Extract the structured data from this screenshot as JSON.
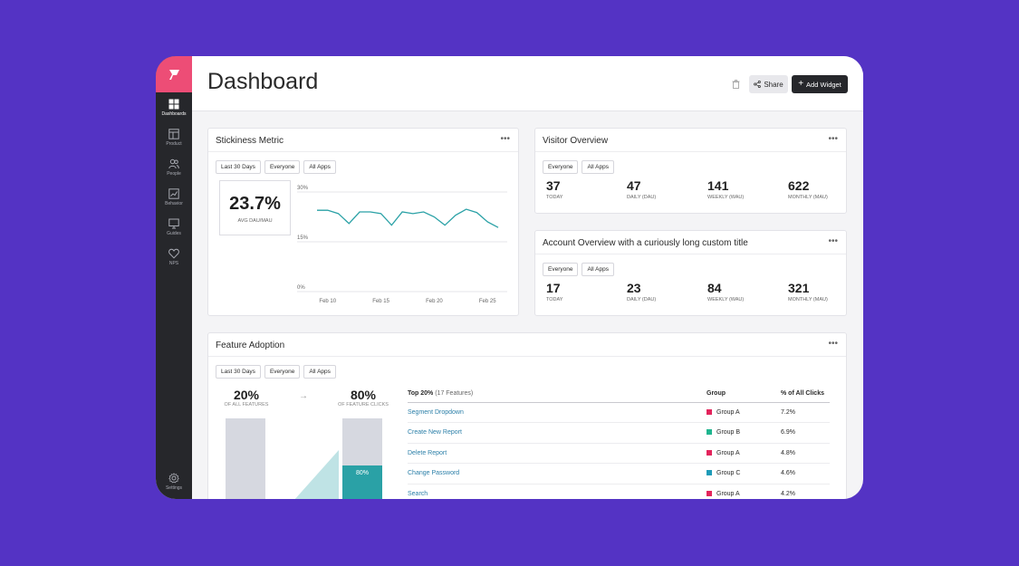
{
  "colors": {
    "background": "#5433c4",
    "accent": "#ed4d76",
    "sidebar": "#26272b",
    "teal": "#2aa1a6",
    "light_teal": "#bfe3e5",
    "group_a": "#e3245c",
    "group_b": "#1fb58f",
    "group_c": "#1e9bb8"
  },
  "sidebar": {
    "logo_icon": "flag-icon",
    "items": [
      {
        "label": "Dashboards",
        "icon": "grid-icon"
      },
      {
        "label": "Product",
        "icon": "layout-icon"
      },
      {
        "label": "People",
        "icon": "people-icon"
      },
      {
        "label": "Behavior",
        "icon": "chart-icon"
      },
      {
        "label": "Guides",
        "icon": "monitor-icon"
      },
      {
        "label": "NPS",
        "icon": "heart-icon"
      }
    ],
    "settings": {
      "label": "Settings",
      "icon": "gear-icon"
    }
  },
  "header": {
    "title": "Dashboard",
    "share_label": "Share",
    "add_widget_label": "Add Widget"
  },
  "stickiness": {
    "title": "Stickiness Metric",
    "filters": [
      "Last 30 Days",
      "Everyone",
      "All Apps"
    ],
    "value": "23.7%",
    "value_label": "AVG DAU/MAU"
  },
  "chart_data": {
    "type": "line",
    "x": [
      "Feb 9",
      "Feb 10",
      "Feb 11",
      "Feb 12",
      "Feb 13",
      "Feb 14",
      "Feb 15",
      "Feb 16",
      "Feb 17",
      "Feb 18",
      "Feb 19",
      "Feb 20",
      "Feb 21",
      "Feb 22",
      "Feb 23",
      "Feb 24",
      "Feb 25",
      "Feb 26"
    ],
    "xticks": [
      "Feb 10",
      "Feb 15",
      "Feb 20",
      "Feb 25"
    ],
    "yticks": [
      "30%",
      "15%",
      "0%"
    ],
    "values": [
      24.5,
      24.5,
      23.5,
      20.5,
      24.0,
      24.0,
      23.5,
      20.0,
      24.0,
      23.5,
      24.0,
      22.5,
      20.0,
      23.0,
      24.8,
      23.8,
      21.0,
      19.3
    ],
    "ylim": [
      0,
      30
    ],
    "grid": true
  },
  "visitor_overview": {
    "title": "Visitor Overview",
    "filters": [
      "Everyone",
      "All Apps"
    ],
    "stats": [
      {
        "value": "37",
        "label": "TODAY"
      },
      {
        "value": "47",
        "label": "DAILY (DAU)"
      },
      {
        "value": "141",
        "label": "WEEKLY (WAU)"
      },
      {
        "value": "622",
        "label": "MONTHLY (MAU)"
      }
    ]
  },
  "account_overview": {
    "title": "Account Overview with a curiously long custom title",
    "filters": [
      "Everyone",
      "All Apps"
    ],
    "stats": [
      {
        "value": "17",
        "label": "TODAY"
      },
      {
        "value": "23",
        "label": "DAILY (DAU)"
      },
      {
        "value": "84",
        "label": "WEEKLY (WAU)"
      },
      {
        "value": "321",
        "label": "MONTHLY (MAU)"
      }
    ]
  },
  "feature_adoption": {
    "title": "Feature Adoption",
    "filters": [
      "Last 30 Days",
      "Everyone",
      "All Apps"
    ],
    "left_pct": "20%",
    "left_label": "OF ALL FEATURES",
    "right_pct": "80%",
    "right_label": "OF FEATURE CLICKS",
    "bar_label": "80%",
    "bar_fraction": 0.8,
    "table": {
      "col_top": "Top 20%",
      "col_top_sub": "(17 Features)",
      "col_group": "Group",
      "col_clicks": "% of All Clicks",
      "rows": [
        {
          "name": "Segment Dropdown",
          "group": "Group A",
          "color": "#e3245c",
          "clicks": "7.2%"
        },
        {
          "name": "Create New Report",
          "group": "Group B",
          "color": "#1fb58f",
          "clicks": "6.9%"
        },
        {
          "name": "Delete Report",
          "group": "Group A",
          "color": "#e3245c",
          "clicks": "4.8%"
        },
        {
          "name": "Change Password",
          "group": "Group C",
          "color": "#1e9bb8",
          "clicks": "4.6%"
        },
        {
          "name": "Search",
          "group": "Group A",
          "color": "#e3245c",
          "clicks": "4.2%"
        }
      ]
    }
  }
}
